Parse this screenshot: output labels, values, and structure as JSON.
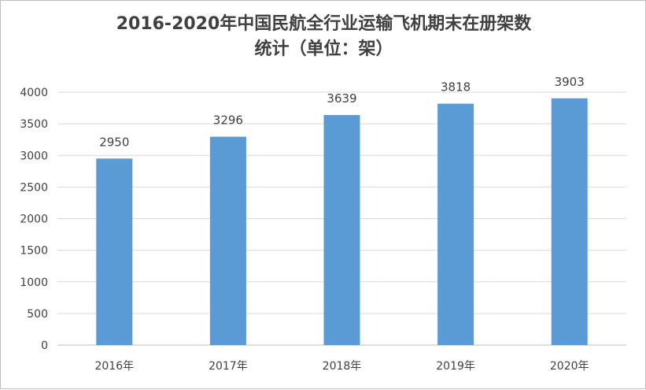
{
  "chart_data": {
    "type": "bar",
    "title_line1": "2016-2020年中国民航全行业运输飞机期末在册架数",
    "title_line2": "统计（单位：架）",
    "categories": [
      "2016年",
      "2017年",
      "2018年",
      "2019年",
      "2020年"
    ],
    "values": [
      2950,
      3296,
      3639,
      3818,
      3903
    ],
    "data_labels": [
      "2950",
      "3296",
      "3639",
      "3818",
      "3903"
    ],
    "ylim": [
      0,
      4000
    ],
    "y_ticks": [
      0,
      500,
      1000,
      1500,
      2000,
      2500,
      3000,
      3500,
      4000
    ],
    "y_tick_labels": [
      "0",
      "500",
      "1000",
      "1500",
      "2000",
      "2500",
      "3000",
      "3500",
      "4000"
    ],
    "grid": true,
    "legend": "none",
    "bar_color": "#5b9bd5",
    "grid_color": "#d9d9d9"
  }
}
